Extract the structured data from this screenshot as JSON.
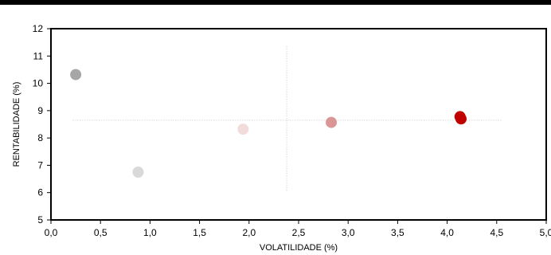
{
  "chart_data": {
    "type": "scatter",
    "title": "",
    "xlabel": "VOLATILIDADE (%)",
    "ylabel": "RENTABILIDADE (%)",
    "xlim": [
      0,
      5
    ],
    "ylim": [
      5,
      12
    ],
    "x_ticks": [
      "0,0",
      "0,5",
      "1,0",
      "1,5",
      "2,0",
      "2,5",
      "3,0",
      "3,5",
      "4,0",
      "4,5",
      "5,0"
    ],
    "y_ticks": [
      "5",
      "6",
      "7",
      "8",
      "9",
      "10",
      "11",
      "12"
    ],
    "grid": false,
    "reference_lines": {
      "vertical_x": 2.38,
      "horizontal_y": 8.65,
      "style": "dotted"
    },
    "points": [
      {
        "x": 0.25,
        "y": 10.32,
        "color": "#a6a6a6"
      },
      {
        "x": 0.88,
        "y": 6.75,
        "color": "#d9d9d9"
      },
      {
        "x": 1.94,
        "y": 8.32,
        "color": "#f2dcdb"
      },
      {
        "x": 2.83,
        "y": 8.57,
        "color": "#d99694"
      },
      {
        "x": 4.13,
        "y": 8.78,
        "color": "#c00000"
      },
      {
        "x": 4.14,
        "y": 8.7,
        "color": "#c00000"
      }
    ]
  }
}
